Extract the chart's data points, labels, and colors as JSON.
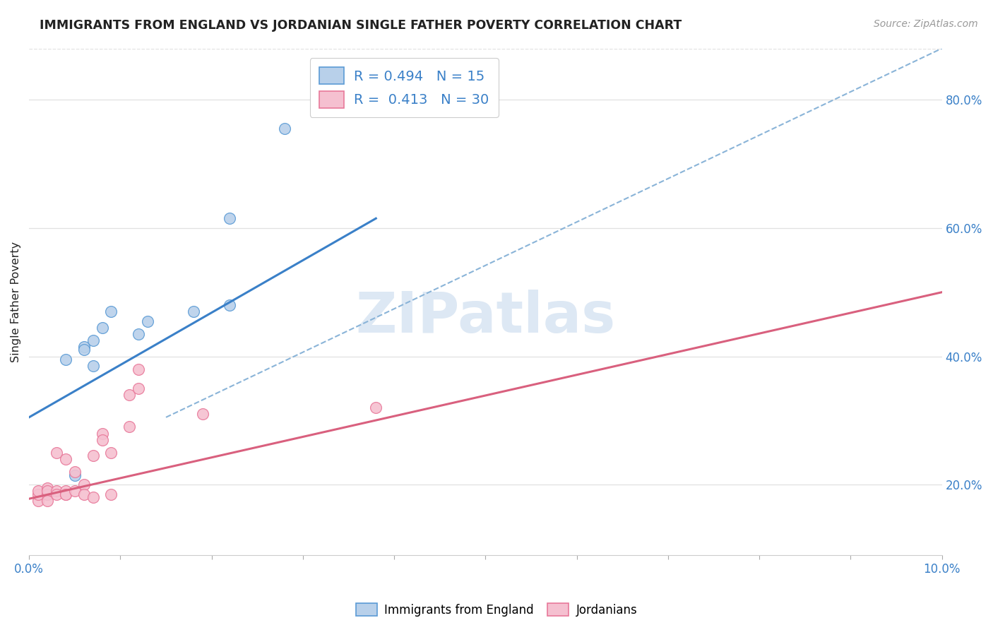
{
  "title": "IMMIGRANTS FROM ENGLAND VS JORDANIAN SINGLE FATHER POVERTY CORRELATION CHART",
  "source": "Source: ZipAtlas.com",
  "ylabel": "Single Father Poverty",
  "legend_blue_r": "R = ",
  "legend_blue_rv": "0.494",
  "legend_blue_n": "  N = ",
  "legend_blue_nv": "15",
  "legend_pink_r": "R = ",
  "legend_pink_rv": "0.413",
  "legend_pink_n": "  N = ",
  "legend_pink_nv": "30",
  "background_color": "#ffffff",
  "blue_fill_color": "#b8d0ea",
  "pink_fill_color": "#f5c0d0",
  "blue_edge_color": "#5b9bd5",
  "pink_edge_color": "#e8799a",
  "blue_line_color": "#3a80c8",
  "pink_line_color": "#d9607e",
  "dashed_line_color": "#8ab4d8",
  "text_black": "#222222",
  "text_blue": "#3a80c8",
  "axis_label_color": "#3a80c8",
  "grid_color": "#e0e0e0",
  "watermark_color": "#dde8f4",
  "blue_scatter_x": [
    0.002,
    0.004,
    0.005,
    0.006,
    0.006,
    0.007,
    0.007,
    0.008,
    0.009,
    0.012,
    0.013,
    0.018,
    0.022,
    0.022,
    0.028
  ],
  "blue_scatter_y": [
    0.185,
    0.395,
    0.215,
    0.415,
    0.41,
    0.385,
    0.425,
    0.445,
    0.47,
    0.435,
    0.455,
    0.47,
    0.48,
    0.615,
    0.755
  ],
  "pink_scatter_x": [
    0.001,
    0.001,
    0.001,
    0.002,
    0.002,
    0.002,
    0.002,
    0.003,
    0.003,
    0.003,
    0.004,
    0.004,
    0.004,
    0.004,
    0.005,
    0.005,
    0.006,
    0.006,
    0.007,
    0.007,
    0.008,
    0.008,
    0.009,
    0.009,
    0.011,
    0.011,
    0.012,
    0.012,
    0.019,
    0.038
  ],
  "pink_scatter_y": [
    0.175,
    0.185,
    0.19,
    0.195,
    0.185,
    0.19,
    0.175,
    0.19,
    0.185,
    0.25,
    0.24,
    0.19,
    0.185,
    0.185,
    0.22,
    0.19,
    0.2,
    0.185,
    0.18,
    0.245,
    0.28,
    0.27,
    0.185,
    0.25,
    0.34,
    0.29,
    0.35,
    0.38,
    0.31,
    0.32
  ],
  "xlim": [
    0.0,
    0.1
  ],
  "ylim": [
    0.09,
    0.88
  ],
  "right_ytick_vals": [
    0.2,
    0.4,
    0.6,
    0.8
  ],
  "right_ytick_labels": [
    "20.0%",
    "40.0%",
    "60.0%",
    "80.0%"
  ],
  "blue_line_x": [
    0.0,
    0.038
  ],
  "blue_line_y": [
    0.305,
    0.615
  ],
  "pink_line_x": [
    0.0,
    0.1
  ],
  "pink_line_y": [
    0.178,
    0.5
  ],
  "dashed_line_x": [
    0.015,
    0.1
  ],
  "dashed_line_y": [
    0.305,
    0.88
  ],
  "num_xticks": 11
}
